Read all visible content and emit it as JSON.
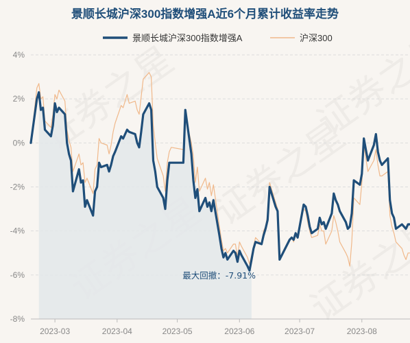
{
  "chart_data": {
    "type": "line",
    "title": "景顺长城沪深300指数增强A近6个月累计收益率走势",
    "xlabel": "",
    "ylabel": "",
    "ylim": [
      -8,
      4
    ],
    "y_ticks": [
      "4%",
      "2%",
      "0%",
      "-2%",
      "-4%",
      "-6%",
      "-8%"
    ],
    "y_tick_values": [
      4,
      2,
      0,
      -2,
      -4,
      -6,
      -8
    ],
    "x_ticks": [
      "2023-03",
      "2023-04",
      "2023-05",
      "2023-06",
      "2023-07",
      "2023-08"
    ],
    "x_tick_dates": [
      "2023-03-01",
      "2023-04-01",
      "2023-05-01",
      "2023-06-01",
      "2023-07-01",
      "2023-08-01"
    ],
    "x_range": [
      "2023-02-17",
      "2023-08-25"
    ],
    "grid": true,
    "legend_position": "top-center",
    "colors": {
      "fund": "#1f4e79",
      "index": "#f0b88a",
      "area": "#e3e7ea",
      "grid": "#dcdcdc",
      "annotation": "#1f4e79",
      "title": "#1f4e79",
      "axis_text": "#888888"
    },
    "annotation": {
      "text": "最大回撤：-7.91%"
    },
    "drawdown": {
      "start": "2023-02-21",
      "end": "2023-06-07",
      "peak_value": 2.3
    },
    "watermark": "证券之星",
    "series": [
      {
        "name": "景顺长城沪深300指数增强A",
        "dates": [
          "2023-02-17",
          "2023-02-20",
          "2023-02-21",
          "2023-02-22",
          "2023-02-23",
          "2023-02-24",
          "2023-02-27",
          "2023-02-28",
          "2023-03-01",
          "2023-03-02",
          "2023-03-03",
          "2023-03-06",
          "2023-03-07",
          "2023-03-08",
          "2023-03-09",
          "2023-03-10",
          "2023-03-13",
          "2023-03-14",
          "2023-03-15",
          "2023-03-16",
          "2023-03-17",
          "2023-03-20",
          "2023-03-21",
          "2023-03-22",
          "2023-03-23",
          "2023-03-24",
          "2023-03-27",
          "2023-03-28",
          "2023-03-29",
          "2023-03-30",
          "2023-03-31",
          "2023-04-03",
          "2023-04-04",
          "2023-04-06",
          "2023-04-07",
          "2023-04-10",
          "2023-04-11",
          "2023-04-12",
          "2023-04-13",
          "2023-04-14",
          "2023-04-17",
          "2023-04-18",
          "2023-04-19",
          "2023-04-20",
          "2023-04-21",
          "2023-04-24",
          "2023-04-25",
          "2023-04-26",
          "2023-04-27",
          "2023-04-28",
          "2023-05-04",
          "2023-05-05",
          "2023-05-08",
          "2023-05-09",
          "2023-05-10",
          "2023-05-11",
          "2023-05-12",
          "2023-05-15",
          "2023-05-16",
          "2023-05-17",
          "2023-05-18",
          "2023-05-19",
          "2023-05-22",
          "2023-05-23",
          "2023-05-24",
          "2023-05-25",
          "2023-05-26",
          "2023-05-29",
          "2023-05-30",
          "2023-05-31",
          "2023-06-01",
          "2023-06-02",
          "2023-06-05",
          "2023-06-06",
          "2023-06-07",
          "2023-06-08",
          "2023-06-09",
          "2023-06-12",
          "2023-06-13",
          "2023-06-14",
          "2023-06-15",
          "2023-06-16",
          "2023-06-19",
          "2023-06-20",
          "2023-06-21",
          "2023-06-26",
          "2023-06-27",
          "2023-06-28",
          "2023-06-29",
          "2023-06-30",
          "2023-07-03",
          "2023-07-04",
          "2023-07-05",
          "2023-07-06",
          "2023-07-07",
          "2023-07-10",
          "2023-07-11",
          "2023-07-12",
          "2023-07-13",
          "2023-07-14",
          "2023-07-17",
          "2023-07-18",
          "2023-07-19",
          "2023-07-20",
          "2023-07-21",
          "2023-07-24",
          "2023-07-25",
          "2023-07-26",
          "2023-07-27",
          "2023-07-28",
          "2023-07-31",
          "2023-08-01",
          "2023-08-02",
          "2023-08-03",
          "2023-08-04",
          "2023-08-07",
          "2023-08-08",
          "2023-08-09",
          "2023-08-10",
          "2023-08-11",
          "2023-08-14",
          "2023-08-15",
          "2023-08-16",
          "2023-08-17",
          "2023-08-18",
          "2023-08-21",
          "2023-08-22",
          "2023-08-23",
          "2023-08-24",
          "2023-08-25"
        ],
        "values": [
          0.0,
          2.0,
          2.3,
          1.5,
          1.6,
          0.6,
          0.3,
          0.8,
          1.8,
          1.4,
          1.6,
          1.3,
          0.0,
          -0.5,
          -0.8,
          -2.2,
          -1.2,
          -1.8,
          -1.7,
          -2.9,
          -2.6,
          -3.3,
          -2.2,
          -2.0,
          -0.9,
          -1.1,
          -1.0,
          -1.3,
          -1.0,
          -0.6,
          -0.4,
          0.3,
          0.2,
          0.6,
          0.5,
          0.4,
          0.0,
          -0.2,
          0.5,
          1.3,
          1.8,
          1.5,
          -0.8,
          -1.3,
          -2.0,
          -2.5,
          -3.0,
          -1.7,
          -0.9,
          -0.9,
          -0.9,
          1.5,
          -0.5,
          -1.7,
          -2.5,
          -2.1,
          -3.1,
          -2.5,
          -2.9,
          -2.7,
          -3.1,
          -2.6,
          -4.2,
          -4.8,
          -5.2,
          -5.0,
          -5.3,
          -4.9,
          -5.0,
          -5.4,
          -4.9,
          -5.1,
          -5.6,
          -5.8,
          -5.3,
          -4.8,
          -4.5,
          -4.6,
          -4.2,
          -3.9,
          -3.5,
          -2.0,
          -2.9,
          -3.1,
          -5.3,
          -4.4,
          -4.3,
          -4.4,
          -4.1,
          -4.3,
          -2.8,
          -2.9,
          -3.3,
          -3.8,
          -4.1,
          -3.9,
          -3.4,
          -3.7,
          -3.6,
          -3.9,
          -3.2,
          -2.3,
          -2.6,
          -2.8,
          -3.1,
          -3.6,
          -3.9,
          -3.8,
          -3.2,
          -1.7,
          -1.9,
          -1.4,
          0.2,
          -0.3,
          -0.8,
          -0.1,
          0.4,
          -0.4,
          -0.8,
          -1.0,
          -0.7,
          -2.6,
          -3.2,
          -3.4,
          -3.9,
          -3.7,
          -3.8,
          -3.9,
          -3.7,
          -3.7
        ]
      },
      {
        "name": "沪深300",
        "dates": [
          "2023-02-17",
          "2023-02-20",
          "2023-02-21",
          "2023-02-22",
          "2023-02-23",
          "2023-02-24",
          "2023-02-27",
          "2023-02-28",
          "2023-03-01",
          "2023-03-02",
          "2023-03-03",
          "2023-03-06",
          "2023-03-07",
          "2023-03-08",
          "2023-03-09",
          "2023-03-10",
          "2023-03-13",
          "2023-03-14",
          "2023-03-15",
          "2023-03-16",
          "2023-03-17",
          "2023-03-20",
          "2023-03-21",
          "2023-03-22",
          "2023-03-23",
          "2023-03-24",
          "2023-03-27",
          "2023-03-28",
          "2023-03-29",
          "2023-03-30",
          "2023-03-31",
          "2023-04-03",
          "2023-04-04",
          "2023-04-06",
          "2023-04-07",
          "2023-04-10",
          "2023-04-11",
          "2023-04-12",
          "2023-04-13",
          "2023-04-14",
          "2023-04-17",
          "2023-04-18",
          "2023-04-19",
          "2023-04-20",
          "2023-04-21",
          "2023-04-24",
          "2023-04-25",
          "2023-04-26",
          "2023-04-27",
          "2023-04-28",
          "2023-05-04",
          "2023-05-05",
          "2023-05-08",
          "2023-05-09",
          "2023-05-10",
          "2023-05-11",
          "2023-05-12",
          "2023-05-15",
          "2023-05-16",
          "2023-05-17",
          "2023-05-18",
          "2023-05-19",
          "2023-05-22",
          "2023-05-23",
          "2023-05-24",
          "2023-05-25",
          "2023-05-26",
          "2023-05-29",
          "2023-05-30",
          "2023-05-31",
          "2023-06-01",
          "2023-06-02",
          "2023-06-05",
          "2023-06-06",
          "2023-06-07",
          "2023-06-08",
          "2023-06-09",
          "2023-06-12",
          "2023-06-13",
          "2023-06-14",
          "2023-06-15",
          "2023-06-16",
          "2023-06-19",
          "2023-06-20",
          "2023-06-21",
          "2023-06-26",
          "2023-06-27",
          "2023-06-28",
          "2023-06-29",
          "2023-06-30",
          "2023-07-03",
          "2023-07-04",
          "2023-07-05",
          "2023-07-06",
          "2023-07-07",
          "2023-07-10",
          "2023-07-11",
          "2023-07-12",
          "2023-07-13",
          "2023-07-14",
          "2023-07-17",
          "2023-07-18",
          "2023-07-19",
          "2023-07-20",
          "2023-07-21",
          "2023-07-24",
          "2023-07-25",
          "2023-07-26",
          "2023-07-27",
          "2023-07-28",
          "2023-07-31",
          "2023-08-01",
          "2023-08-02",
          "2023-08-03",
          "2023-08-04",
          "2023-08-07",
          "2023-08-08",
          "2023-08-09",
          "2023-08-10",
          "2023-08-11",
          "2023-08-14",
          "2023-08-15",
          "2023-08-16",
          "2023-08-17",
          "2023-08-18",
          "2023-08-21",
          "2023-08-22",
          "2023-08-23",
          "2023-08-24",
          "2023-08-25"
        ],
        "values": [
          0.0,
          2.5,
          2.7,
          2.0,
          2.1,
          1.0,
          0.7,
          1.3,
          2.2,
          2.0,
          2.4,
          1.9,
          0.6,
          0.1,
          -0.2,
          -1.3,
          -0.5,
          -1.0,
          -0.9,
          -1.8,
          -1.6,
          -2.3,
          -1.2,
          -1.0,
          0.2,
          0.0,
          -0.1,
          -0.5,
          -0.1,
          0.5,
          0.9,
          1.7,
          1.6,
          2.2,
          1.8,
          1.9,
          1.5,
          1.3,
          2.1,
          2.9,
          3.2,
          3.0,
          0.8,
          0.0,
          -0.7,
          -1.5,
          -2.2,
          -0.9,
          -0.4,
          -0.2,
          -0.3,
          1.2,
          0.0,
          -0.6,
          -1.8,
          -1.1,
          -2.2,
          -1.6,
          -2.1,
          -1.8,
          -2.4,
          -1.9,
          -3.8,
          -4.4,
          -4.9,
          -4.8,
          -5.0,
          -4.6,
          -4.6,
          -5.2,
          -4.5,
          -4.7,
          -5.2,
          -5.5,
          -5.1,
          -4.7,
          -4.3,
          -4.6,
          -4.0,
          -3.8,
          -3.3,
          -1.8,
          -2.7,
          -3.0,
          -5.3,
          -4.4,
          -4.3,
          -4.5,
          -4.1,
          -4.3,
          -3.0,
          -3.1,
          -3.6,
          -4.0,
          -4.3,
          -4.2,
          -3.7,
          -4.0,
          -4.0,
          -4.6,
          -4.0,
          -3.3,
          -3.6,
          -4.0,
          -4.5,
          -5.0,
          -5.2,
          -5.6,
          -4.5,
          -2.5,
          -2.8,
          -1.8,
          -0.1,
          -0.7,
          -1.3,
          -0.8,
          -0.3,
          -1.0,
          -1.5,
          -1.5,
          -1.3,
          -3.3,
          -3.8,
          -4.1,
          -4.5,
          -4.8,
          -5.1,
          -5.3,
          -5.0,
          -5.0
        ]
      }
    ]
  }
}
